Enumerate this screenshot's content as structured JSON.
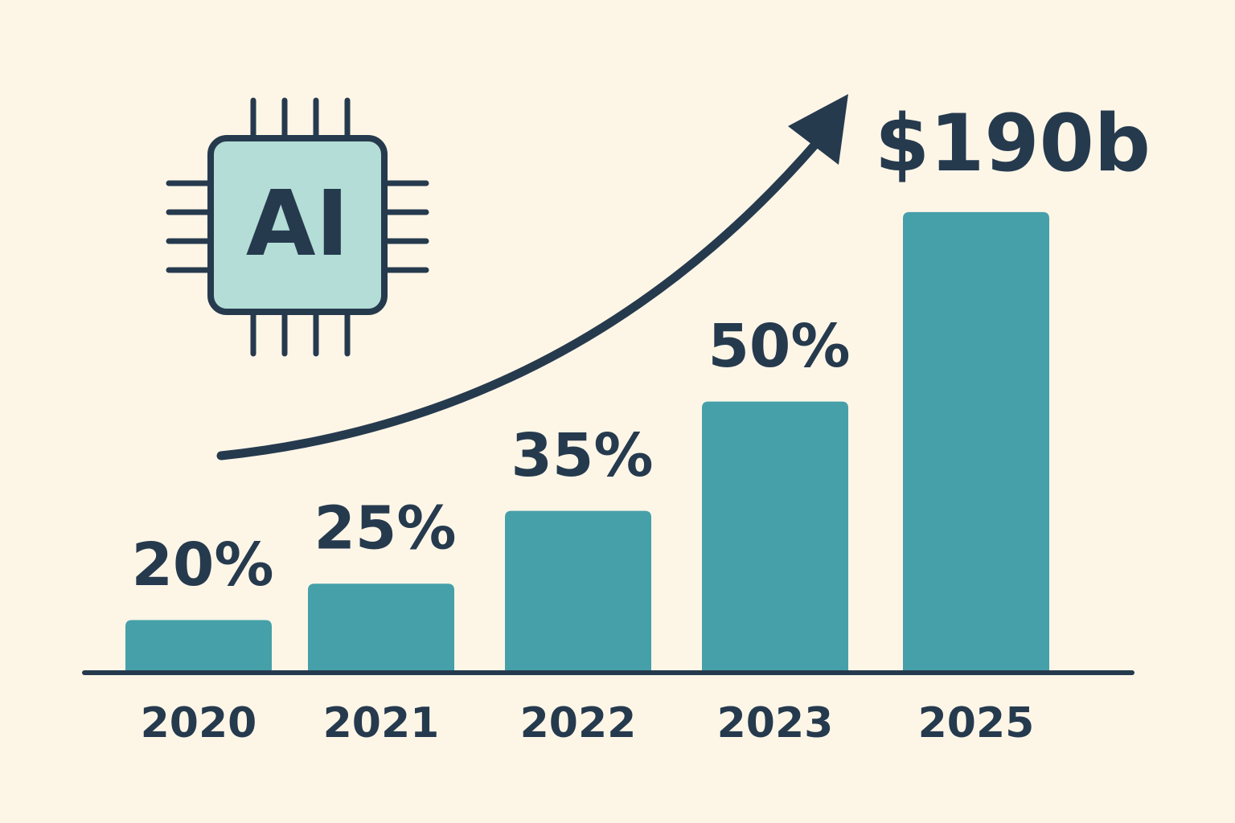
{
  "chart_data": {
    "type": "bar",
    "icon_text": "AI",
    "annotation": "$190b",
    "categories": [
      "2020",
      "2021",
      "2022",
      "2023",
      "2025"
    ],
    "values": [
      20,
      25,
      35,
      50,
      76
    ],
    "value_labels": [
      "20%",
      "25%",
      "35%",
      "50%",
      null
    ],
    "color": "#45a0a9",
    "ylim": [
      13,
      90
    ],
    "grid": false
  }
}
